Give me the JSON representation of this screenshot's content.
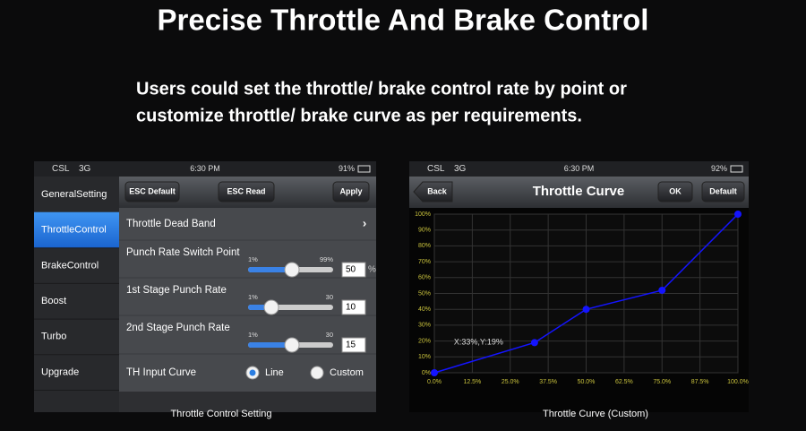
{
  "header": {
    "title": "Precise Throttle And Brake Control",
    "subtitle": [
      "Users could set the throttle/ brake control rate by point or",
      "customize throttle/ brake curve as per requirements."
    ]
  },
  "left_screen": {
    "status": {
      "carrier": "CSL",
      "network": "3G",
      "time": "6:30 PM",
      "battery": "91%"
    },
    "buttons": [
      "ESC Default",
      "ESC Read",
      "Apply"
    ],
    "menu": [
      "GeneralSetting",
      "ThrottleControl",
      "BrakeControl",
      "Boost",
      "Turbo",
      "Upgrade"
    ],
    "rows": [
      {
        "label": "Throttle Dead Band"
      },
      {
        "label": "Punch Rate Switch Point",
        "min": "1%",
        "max": "99%",
        "value": "50",
        "unit": "%"
      },
      {
        "label": "1st Stage Punch Rate",
        "min": "1%",
        "max": "30",
        "value": "10"
      },
      {
        "label": "2nd Stage Punch Rate",
        "min": "1%",
        "max": "30",
        "value": "15"
      }
    ],
    "input_curve": {
      "label": "TH Input Curve",
      "options": [
        "Line",
        "Custom"
      ]
    },
    "caption": "Throttle Control Setting"
  },
  "right_screen": {
    "status": {
      "carrier": "CSL",
      "network": "3G",
      "time": "6:30 PM",
      "battery": "92%"
    },
    "back": "Back",
    "title": "Throttle Curve",
    "buttons": [
      "OK",
      "Default"
    ],
    "caption": "Throttle Curve (Custom)"
  },
  "chart_data": {
    "type": "line",
    "x": [
      0,
      33,
      50,
      75,
      100
    ],
    "values": [
      0,
      19,
      40,
      52,
      100
    ],
    "color": "#1414ff",
    "annotation": "X:33%,Y:19%",
    "grid": true,
    "xlim": [
      0,
      100
    ],
    "ylim": [
      0,
      100
    ],
    "xticks": [
      {
        "value": 0,
        "label": "0.0%"
      },
      {
        "value": 12.5,
        "label": "12.5%"
      },
      {
        "value": 25,
        "label": "25.0%"
      },
      {
        "value": 37.5,
        "label": "37.5%"
      },
      {
        "value": 50,
        "label": "50.0%"
      },
      {
        "value": 62.5,
        "label": "62.5%"
      },
      {
        "value": 75,
        "label": "75.0%"
      },
      {
        "value": 87.5,
        "label": "87.5%"
      },
      {
        "value": 100,
        "label": "100.0%"
      }
    ],
    "yticks": [
      {
        "value": 0,
        "label": "0%"
      },
      {
        "value": 10,
        "label": "10%"
      },
      {
        "value": 20,
        "label": "20%"
      },
      {
        "value": 30,
        "label": "30%"
      },
      {
        "value": 40,
        "label": "40%"
      },
      {
        "value": 50,
        "label": "50%"
      },
      {
        "value": 60,
        "label": "60%"
      },
      {
        "value": 70,
        "label": "70%"
      },
      {
        "value": 80,
        "label": "80%"
      },
      {
        "value": 90,
        "label": "90%"
      },
      {
        "value": 100,
        "label": "100%"
      }
    ]
  }
}
